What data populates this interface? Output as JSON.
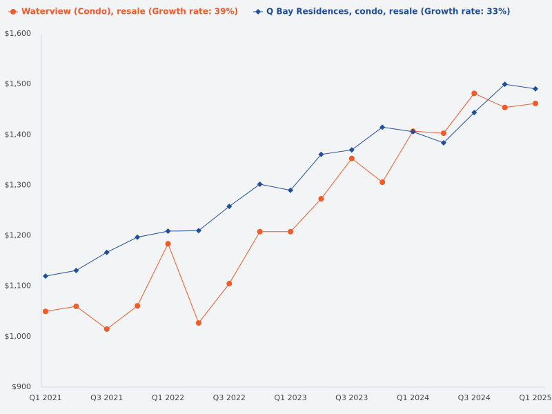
{
  "chart_data": {
    "type": "line",
    "categories": [
      "Q1 2021",
      null,
      "Q3 2021",
      null,
      "Q1 2022",
      null,
      "Q3 2022",
      null,
      "Q1 2023",
      null,
      "Q3 2023",
      null,
      "Q1 2024",
      null,
      "Q3 2024",
      null,
      "Q1 2025"
    ],
    "series": [
      {
        "name": "Waterview (Condo), resale (Growth rate: 39%)",
        "color": "#f15a29",
        "marker": "circle",
        "values": [
          1050,
          1060,
          1015,
          1061,
          1184,
          1027,
          1105,
          1208,
          1208,
          1273,
          1353,
          1306,
          1407,
          1403,
          1482,
          1454,
          1462
        ]
      },
      {
        "name": "Q Bay Residences, condo, resale (Growth rate: 33%)",
        "color": "#1f4e9c",
        "marker": "diamond",
        "values": [
          1120,
          1131,
          1167,
          1197,
          1209,
          1210,
          1258,
          1302,
          1290,
          1361,
          1370,
          1415,
          1406,
          1384,
          1444,
          1500,
          1491
        ]
      }
    ],
    "ylim": [
      900,
      1600
    ],
    "yticks": [
      {
        "value": 900,
        "label": "$900"
      },
      {
        "value": 1000,
        "label": "$1,000"
      },
      {
        "value": 1100,
        "label": "$1,100"
      },
      {
        "value": 1200,
        "label": "$1,200"
      },
      {
        "value": 1300,
        "label": "$1,300"
      },
      {
        "value": 1400,
        "label": "$1,400"
      },
      {
        "value": 1500,
        "label": "$1,500"
      },
      {
        "value": 1600,
        "label": "$1,600"
      }
    ],
    "grid": false
  }
}
